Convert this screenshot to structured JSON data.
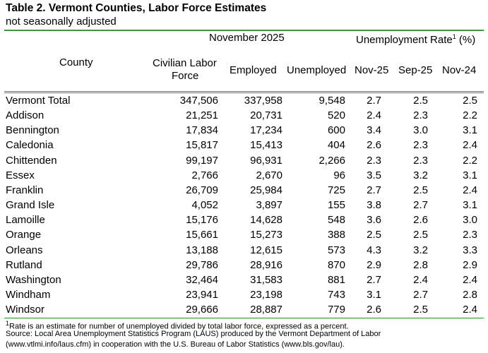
{
  "title": "Table 2. Vermont Counties, Labor Force Estimates",
  "subtitle": "not seasonally adjusted",
  "header": {
    "group1": "November 2025",
    "group2": "Unemployment Rate",
    "group2_sup": "1",
    "group2_unit": " (%)",
    "county": "County",
    "clf_line1": "Civilian Labor",
    "clf_line2": "Force",
    "employed": "Employed",
    "unemployed": "Unemployed",
    "rate1": "Nov-25",
    "rate2": "Sep-25",
    "rate3": "Nov-24"
  },
  "rows": [
    [
      "Vermont Total",
      "347,506",
      "337,958",
      "9,548",
      "2.7",
      "2.5",
      "2.5"
    ],
    [
      "Addison",
      "21,251",
      "20,731",
      "520",
      "2.4",
      "2.3",
      "2.2"
    ],
    [
      "Bennington",
      "17,834",
      "17,234",
      "600",
      "3.4",
      "3.0",
      "3.1"
    ],
    [
      "Caledonia",
      "15,817",
      "15,413",
      "404",
      "2.6",
      "2.3",
      "2.4"
    ],
    [
      "Chittenden",
      "99,197",
      "96,931",
      "2,266",
      "2.3",
      "2.3",
      "2.2"
    ],
    [
      "Essex",
      "2,766",
      "2,670",
      "96",
      "3.5",
      "3.2",
      "3.1"
    ],
    [
      "Franklin",
      "26,709",
      "25,984",
      "725",
      "2.7",
      "2.5",
      "2.4"
    ],
    [
      "Grand Isle",
      "4,052",
      "3,897",
      "155",
      "3.8",
      "2.7",
      "3.1"
    ],
    [
      "Lamoille",
      "15,176",
      "14,628",
      "548",
      "3.6",
      "2.6",
      "3.0"
    ],
    [
      "Orange",
      "15,661",
      "15,273",
      "388",
      "2.5",
      "2.5",
      "2.3"
    ],
    [
      "Orleans",
      "13,188",
      "12,615",
      "573",
      "4.3",
      "3.2",
      "3.3"
    ],
    [
      "Rutland",
      "29,786",
      "28,916",
      "870",
      "2.9",
      "2.8",
      "2.9"
    ],
    [
      "Washington",
      "32,464",
      "31,583",
      "881",
      "2.7",
      "2.4",
      "2.4"
    ],
    [
      "Windham",
      "23,941",
      "23,198",
      "743",
      "3.1",
      "2.7",
      "2.8"
    ],
    [
      "Windsor",
      "29,666",
      "28,887",
      "779",
      "2.6",
      "2.5",
      "2.4"
    ]
  ],
  "footnotes": {
    "note_sup": "1",
    "note": "Rate is an estimate for number of unemployed divided by total labor force, expressed as a percent.",
    "source1": "Source:   Local Area Unemployment Statistics Program (LAUS) produced by the Vermont Department of Labor",
    "source2": "(www.vtlmi.info/laus.cfm) in cooperation with the U.S. Bureau of Labor Statistics (www.bls.gov/lau)."
  },
  "colors": {
    "rule": "#3a9a3a"
  }
}
